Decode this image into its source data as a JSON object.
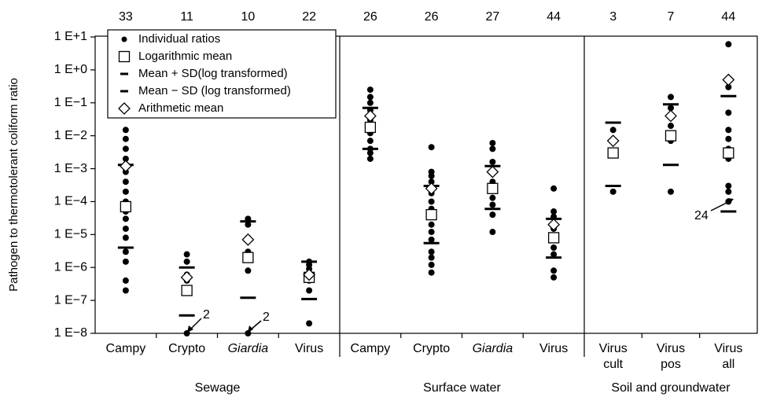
{
  "chart_data": {
    "type": "dot",
    "ylabel": "Pathogen to thermotolerant coliform ratio",
    "log_scale": true,
    "ylim": [
      1e-08,
      10
    ],
    "yticks": [
      {
        "value": 10,
        "label": "1 E+1"
      },
      {
        "value": 1,
        "label": "1 E+0"
      },
      {
        "value": 0.1,
        "label": "1 E−1"
      },
      {
        "value": 0.01,
        "label": "1 E−2"
      },
      {
        "value": 0.001,
        "label": "1 E−3"
      },
      {
        "value": 0.0001,
        "label": "1 E−4"
      },
      {
        "value": 1e-05,
        "label": "1 E−5"
      },
      {
        "value": 1e-06,
        "label": "1 E−6"
      },
      {
        "value": 1e-07,
        "label": "1 E−7"
      },
      {
        "value": 1e-08,
        "label": "1 E−8"
      }
    ],
    "groups": [
      "Sewage",
      "Surface water",
      "Soil and groundwater"
    ],
    "categories": [
      "Campy",
      "Crypto",
      "Giardia",
      "Virus",
      "Campy",
      "Crypto",
      "Giardia",
      "Virus",
      "Virus cult",
      "Virus pos",
      "Virus all"
    ],
    "category_font_style": [
      "normal",
      "normal",
      "italic",
      "normal",
      "normal",
      "normal",
      "italic",
      "normal",
      "normal",
      "normal",
      "normal"
    ],
    "n": [
      33,
      11,
      10,
      22,
      26,
      26,
      27,
      44,
      3,
      7,
      44
    ],
    "series": [
      {
        "name": "Individual ratios",
        "marker": "dot",
        "color": "#000000",
        "values": [
          [
            0.015,
            0.008,
            0.004,
            0.002,
            0.0008,
            0.0004,
            0.0002,
            0.0001,
            5e-05,
            3e-05,
            1.5e-05,
            8e-06,
            3e-06,
            1.5e-06,
            4e-07,
            2e-07
          ],
          [
            2.5e-06,
            1.5e-06,
            6e-07,
            4e-07,
            1e-08
          ],
          [
            3e-05,
            2e-05,
            8e-06,
            3e-06,
            8e-07,
            1e-08
          ],
          [
            1.5e-06,
            1.2e-06,
            9e-07,
            6e-07,
            4e-07,
            2e-07,
            2e-08
          ],
          [
            0.25,
            0.15,
            0.1,
            0.06,
            0.03,
            0.018,
            0.012,
            0.007,
            0.004,
            0.003,
            0.002
          ],
          [
            0.0045,
            0.0008,
            0.0006,
            0.0004,
            0.00018,
            0.0001,
            6e-05,
            2e-05,
            1.2e-05,
            7e-06,
            3e-06,
            2e-06,
            1.2e-06,
            7e-07
          ],
          [
            0.006,
            0.004,
            0.0016,
            0.0004,
            0.00013,
            8e-05,
            4e-05,
            1.2e-05
          ],
          [
            0.00025,
            5e-05,
            3.5e-05,
            1.5e-05,
            4e-06,
            2.5e-06,
            8e-07,
            5e-07
          ],
          [
            0.015,
            0.007,
            0.0002
          ],
          [
            0.15,
            0.07,
            0.02,
            0.007,
            0.0002
          ],
          [
            6,
            0.3,
            0.05,
            0.015,
            0.008,
            0.004,
            0.002,
            0.0003,
            0.0002,
            0.0001
          ]
        ]
      },
      {
        "name": "Logarithmic mean",
        "marker": "square",
        "color": "#000000",
        "values": [
          7e-05,
          2e-07,
          2e-06,
          5e-07,
          0.018,
          4e-05,
          0.00025,
          8e-06,
          0.003,
          0.01,
          0.003
        ]
      },
      {
        "name": "Mean + SD(log transformed)",
        "marker": "dash",
        "color": "#000000",
        "values": [
          0.0013,
          1e-06,
          2.5e-05,
          1.5e-06,
          0.07,
          0.0003,
          0.0012,
          3e-05,
          0.025,
          0.09,
          0.16
        ]
      },
      {
        "name": "Mean − SD (log transformed)",
        "marker": "dash",
        "color": "#000000",
        "values": [
          4e-06,
          3.5e-08,
          1.2e-07,
          1.1e-07,
          0.004,
          5.5e-06,
          6e-05,
          2e-06,
          0.0003,
          0.0013,
          5e-05
        ]
      },
      {
        "name": "Arithmetic mean",
        "marker": "diamond",
        "color": "#000000",
        "values": [
          0.0012,
          5e-07,
          7e-06,
          6e-07,
          0.04,
          0.00025,
          0.0008,
          2e-05,
          0.007,
          0.04,
          0.5
        ]
      }
    ],
    "annotations": [
      "2",
      "2",
      "24"
    ]
  }
}
